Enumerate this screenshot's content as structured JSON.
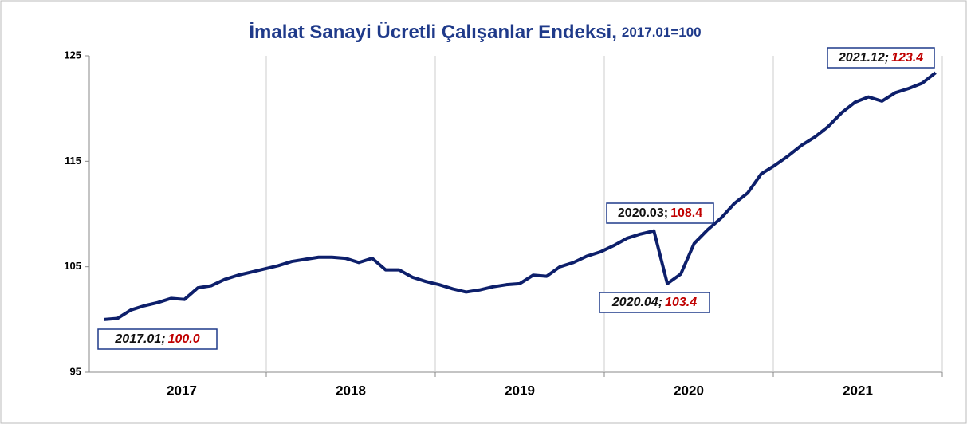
{
  "chart_data": {
    "type": "line",
    "title": "İmalat Sanayi Ücretli Çalışanlar Endeksi,",
    "subtitle": "2017.01=100",
    "x_labels": [
      "2017",
      "2018",
      "2019",
      "2020",
      "2021"
    ],
    "series": [
      {
        "color": "#0d1f6b",
        "values": [
          100.0,
          100.1,
          100.9,
          101.3,
          101.6,
          102.0,
          101.9,
          103.0,
          103.2,
          103.8,
          104.2,
          104.5,
          104.8,
          105.1,
          105.5,
          105.7,
          105.9,
          105.9,
          105.8,
          105.4,
          105.8,
          104.7,
          104.7,
          104.0,
          103.6,
          103.3,
          102.9,
          102.6,
          102.8,
          103.1,
          103.3,
          103.4,
          104.2,
          104.1,
          105.0,
          105.4,
          106.0,
          106.4,
          107.0,
          107.7,
          108.1,
          108.4,
          103.4,
          104.3,
          107.2,
          108.5,
          109.6,
          111.0,
          112.0,
          113.8,
          114.6,
          115.5,
          116.5,
          117.3,
          118.3,
          119.6,
          120.6,
          121.1,
          120.7,
          121.5,
          121.9,
          122.4,
          123.4
        ]
      }
    ],
    "annotations": [
      {
        "label": "2017.01;",
        "value": "100.0"
      },
      {
        "label": "2020.03;",
        "value": "108.4"
      },
      {
        "label": "2020.04;",
        "value": "103.4"
      },
      {
        "label": "2021.12;",
        "value": "123.4"
      }
    ],
    "ylim": [
      95,
      125
    ],
    "yticks": [
      95,
      105,
      115,
      125
    ],
    "grid": true
  }
}
